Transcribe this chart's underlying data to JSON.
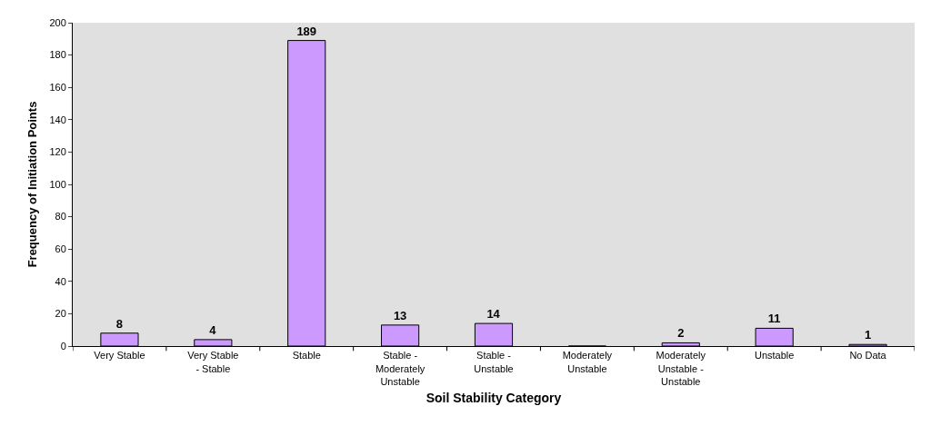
{
  "chart_data": {
    "type": "bar",
    "xlabel": "Soil Stability Category",
    "ylabel": "Frequency of Initiation Points",
    "categories": [
      "Very Stable",
      "Very Stable\n- Stable",
      "Stable",
      "Stable -\nModerately\nUnstable",
      "Stable -\nUnstable",
      "Moderately\nUnstable",
      "Moderately\nUnstable -\nUnstable",
      "Unstable",
      "No Data"
    ],
    "values": [
      8,
      4,
      189,
      13,
      14,
      0,
      2,
      11,
      1
    ],
    "value_labels": [
      "8",
      "4",
      "189",
      "13",
      "14",
      null,
      "2",
      "11",
      "1"
    ],
    "color": "#cc99ff",
    "ylim": [
      0,
      200
    ],
    "yticks": [
      0,
      20,
      40,
      60,
      80,
      100,
      120,
      140,
      160,
      180,
      200
    ],
    "grid": false
  }
}
